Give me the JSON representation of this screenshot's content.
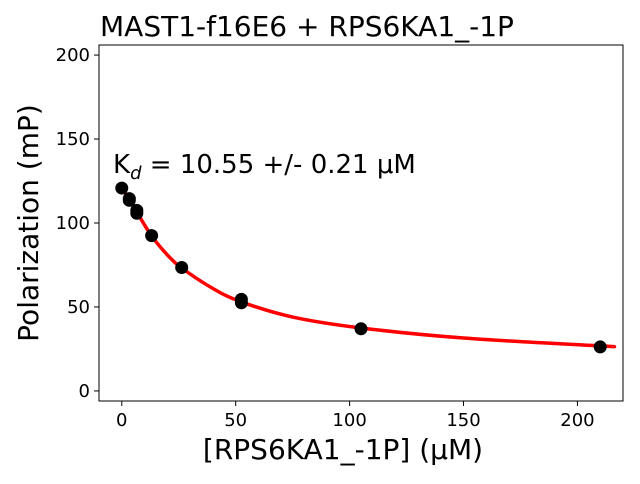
{
  "chart_data": {
    "type": "scatter",
    "title": "MAST1-f16E6 + RPS6KA1_-1P",
    "xlabel": "[RPS6KA1_-1P] (μM)",
    "ylabel": "Polarization (mP)",
    "xlim": [
      -10,
      220
    ],
    "ylim": [
      -6,
      206
    ],
    "xticks": [
      0,
      50,
      100,
      150,
      200
    ],
    "yticks": [
      0,
      50,
      100,
      150,
      200
    ],
    "grid": false,
    "annotation": {
      "prefix": "K",
      "subscript": "d",
      "text": " = 10.55 +/- 0.21 μM"
    },
    "series": [
      {
        "kind": "points",
        "color": "#000000",
        "x": [
          0,
          3.3,
          3.3,
          6.6,
          6.6,
          13.1,
          26.3,
          52.5,
          52.5,
          105,
          210
        ],
        "y": [
          120.8,
          114.5,
          113.5,
          107.5,
          105.8,
          92.5,
          73.5,
          54.5,
          52.5,
          37,
          26.2
        ]
      },
      {
        "kind": "fit",
        "color": "#ff0000",
        "x": [
          0,
          3.3,
          6.6,
          13,
          20,
          26,
          40,
          52.5,
          75,
          105,
          150,
          210,
          215
        ],
        "y": [
          121,
          114,
          106.5,
          92.5,
          81,
          73.5,
          61,
          53,
          44,
          37.5,
          31.5,
          26.8,
          26.5
        ]
      }
    ]
  }
}
